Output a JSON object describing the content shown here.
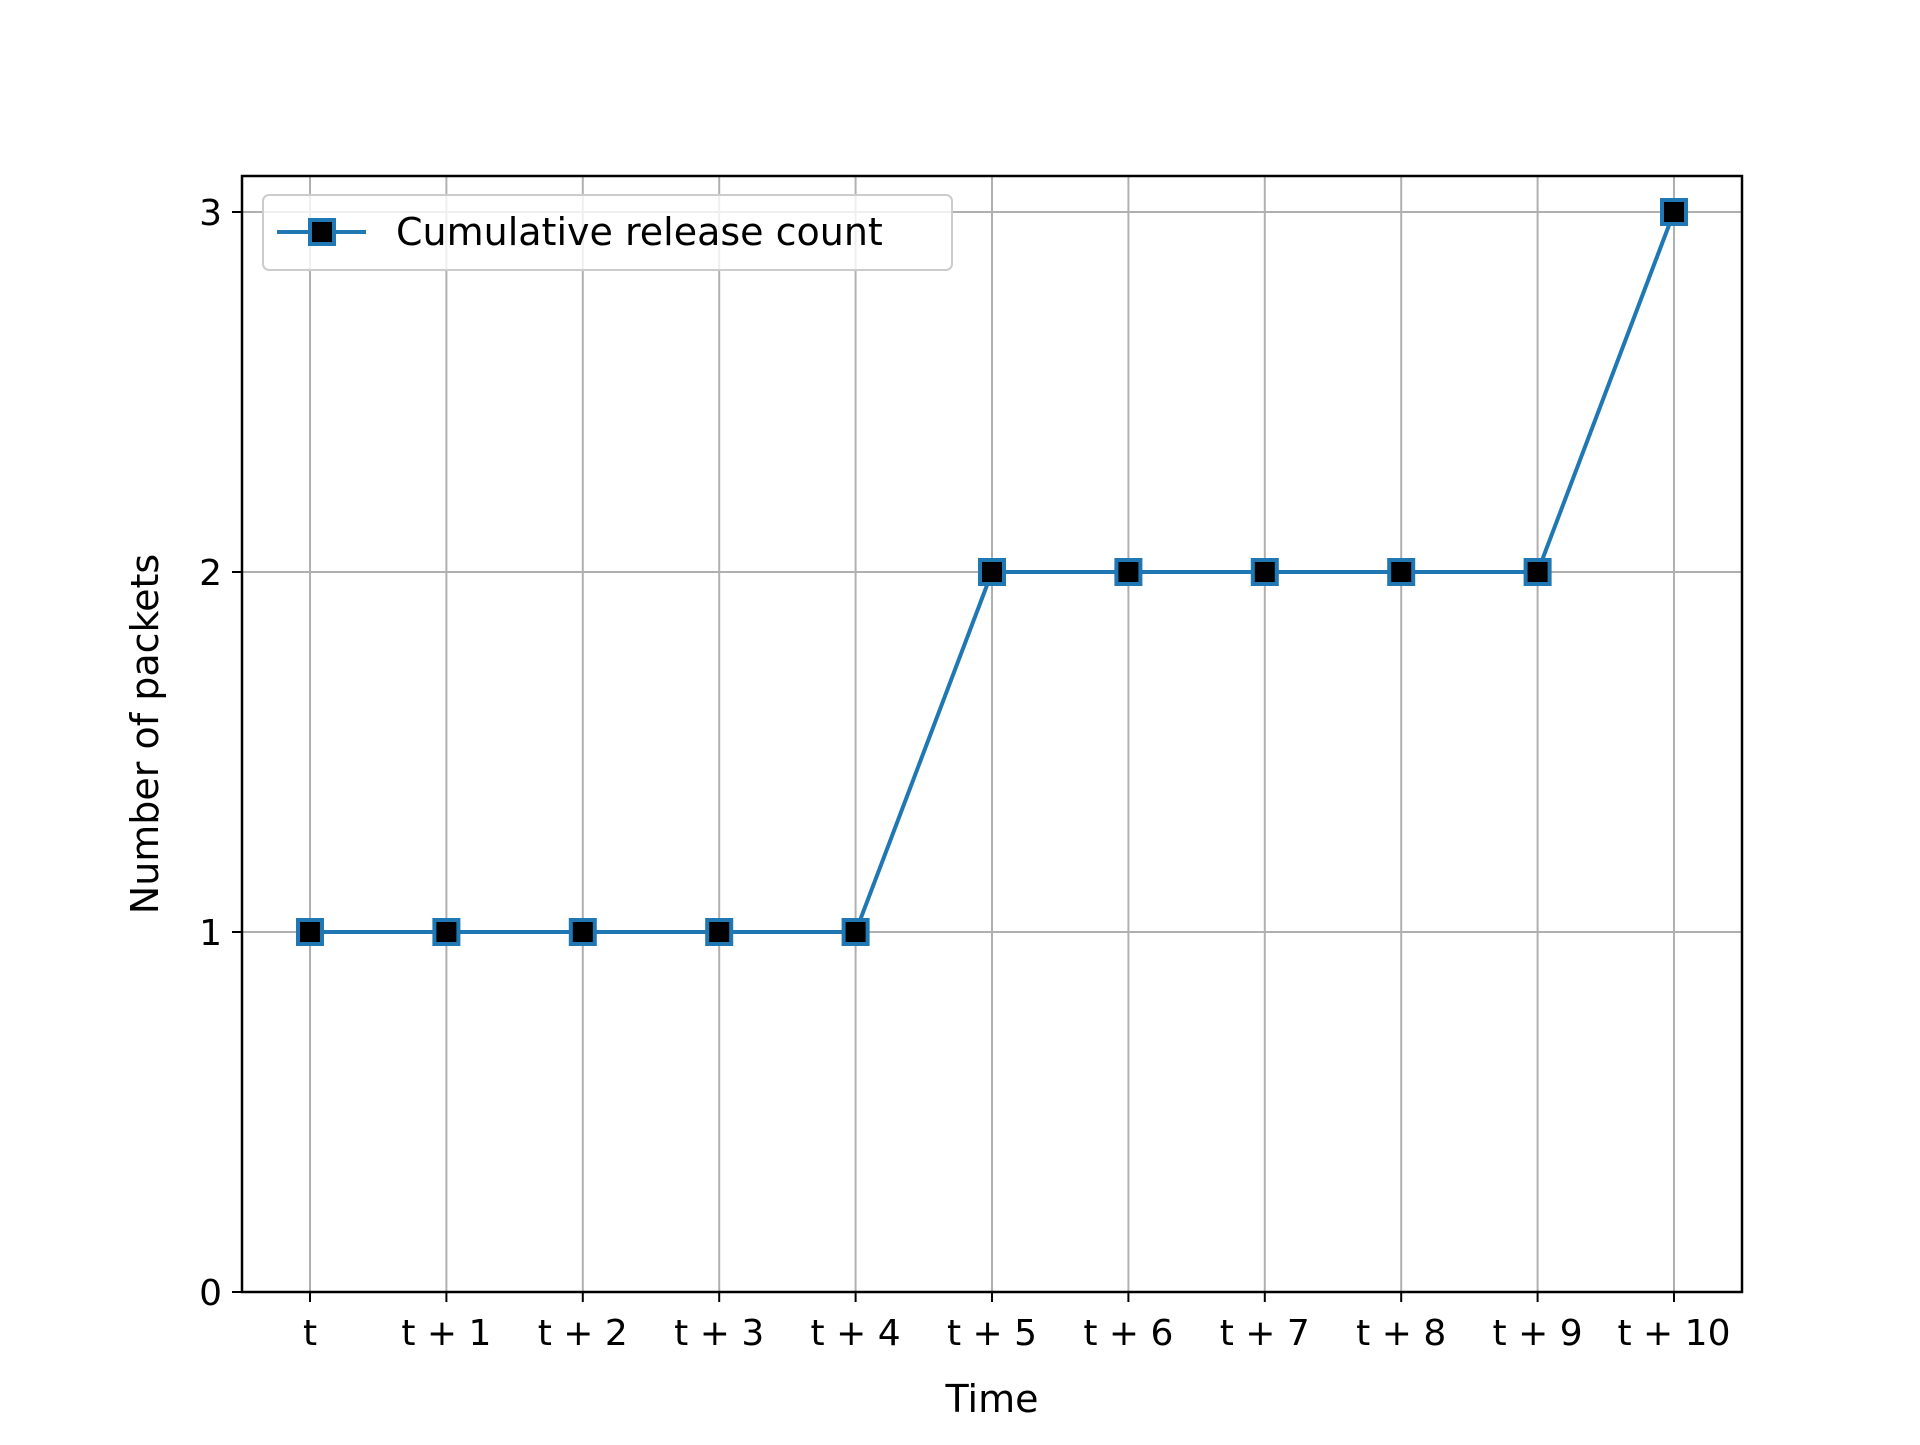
{
  "chart_data": {
    "type": "line",
    "title": "",
    "xlabel": "Time",
    "ylabel": "Number of packets",
    "categories": [
      "t",
      "t + 1",
      "t + 2",
      "t + 3",
      "t + 4",
      "t + 5",
      "t + 6",
      "t + 7",
      "t + 8",
      "t + 9",
      "t + 10"
    ],
    "series": [
      {
        "name": "Cumulative release count",
        "values": [
          1,
          1,
          1,
          1,
          1,
          2,
          2,
          2,
          2,
          2,
          3
        ],
        "line_color": "#1f77b4",
        "marker": "square",
        "marker_face_color": "#000000",
        "marker_edge_color": "#1f77b4"
      }
    ],
    "ylim": [
      0,
      3.1
    ],
    "yticks": [
      0,
      1,
      2,
      3
    ],
    "grid": true,
    "legend_position": "upper-left",
    "colors": {
      "grid": "#b0b0b0",
      "axes": "#000000"
    }
  }
}
